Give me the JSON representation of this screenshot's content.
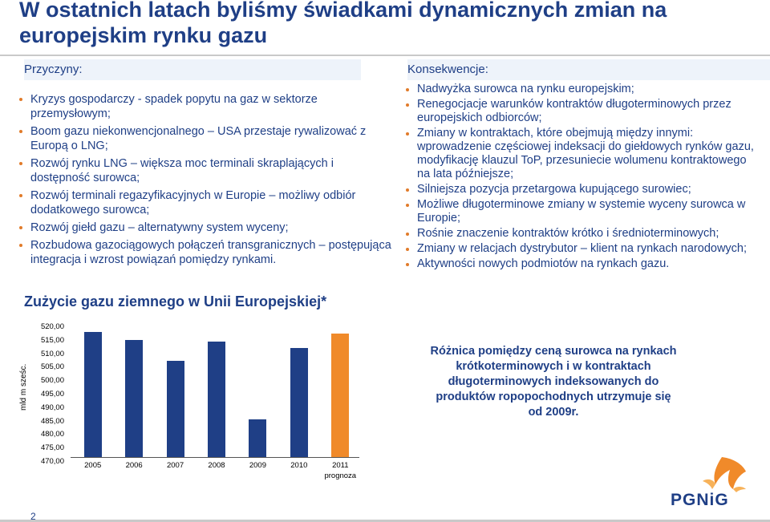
{
  "title": "W ostatnich latach byliśmy świadkami dynamicznych zmian na europejskim rynku gazu",
  "causes": {
    "heading": "Przyczyny:",
    "items": [
      "Kryzys gospodarczy - spadek popytu na gaz w sektorze przemysłowym;",
      "Boom gazu niekonwencjonalnego – USA przestaje rywalizować z Europą o LNG;",
      "Rozwój rynku LNG – większa moc terminali skraplających i dostępność surowca;",
      "Rozwój terminali regazyfikacyjnych w Europie – możliwy odbiór dodatkowego surowca;",
      "Rozwój giełd gazu – alternatywny system wyceny;",
      "Rozbudowa gazociągowych połączeń transgranicznych – postępująca integracja i wzrost powiązań pomiędzy rynkami."
    ]
  },
  "consequences": {
    "heading": "Konsekwencje:",
    "items": [
      "Nadwyżka surowca na rynku europejskim;",
      "Renegocjacje warunków kontraktów długoterminowych przez europejskich odbiorców;",
      "Zmiany w kontraktach, które obejmują między innymi: wprowadzenie częściowej indeksacji do giełdowych rynków gazu, modyfikację klauzul ToP, przesuniecie wolumenu kontraktowego na lata późniejsze;",
      "Silniejsza pozycja przetargowa kupującego surowiec;",
      "Możliwe długoterminowe zmiany w systemie wyceny surowca w Europie;",
      "Rośnie znaczenie kontraktów krótko i średnioterminowych;",
      "Zmiany w relacjach dystrybutor – klient na rynkach narodowych;",
      "Aktywności nowych podmiotów na rynkach gazu."
    ]
  },
  "note": "Różnica pomiędzy ceną surowca na rynkach krótkoterminowych i w kontraktach długoterminowych indeksowanych do produktów ropopochodnych utrzymuje się od 2009r.",
  "page_number": "2",
  "logo_text": "PGNiG",
  "colors": {
    "primary": "#1f3f86",
    "accent": "#f08a2a",
    "bullet": "#e17b2a"
  },
  "chart_data": {
    "type": "bar",
    "title": "Zużycie gazu ziemnego w Unii Europejskiej*",
    "ylabel": "mld m sześc.",
    "xlabel": "",
    "ylim": [
      470,
      520
    ],
    "yticks": [
      "520,00",
      "515,00",
      "510,00",
      "505,00",
      "500,00",
      "495,00",
      "490,00",
      "485,00",
      "480,00",
      "475,00",
      "470,00"
    ],
    "categories": [
      "2005",
      "2006",
      "2007",
      "2008",
      "2009",
      "2010",
      "2011"
    ],
    "category_sublabels": {
      "2011": "prognoza"
    },
    "values": [
      518,
      515,
      507,
      514.5,
      484.5,
      512,
      517.5
    ],
    "forecast_flags": [
      false,
      false,
      false,
      false,
      false,
      false,
      true
    ],
    "grid": false,
    "legend": "none"
  }
}
